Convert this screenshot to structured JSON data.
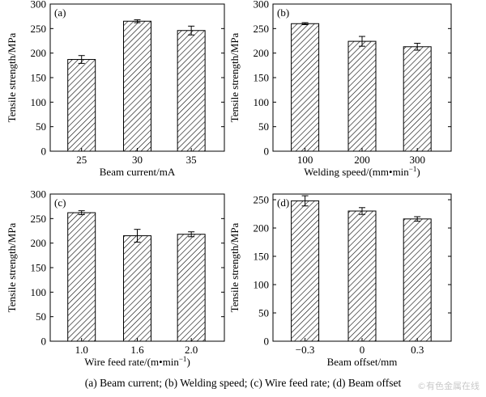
{
  "caption": "(a) Beam current; (b) Welding speed; (c) Wire feed rate; (d) Beam offset",
  "watermark": "©有色金属在线",
  "chart_data": [
    {
      "type": "bar",
      "panel_label": "(a)",
      "categories": [
        "25",
        "30",
        "35"
      ],
      "values": [
        187,
        265,
        246
      ],
      "errors": [
        8,
        3,
        9
      ],
      "xlabel": "Beam current/mA",
      "ylabel": "Tensile strength/MPa",
      "ylim": [
        0,
        300
      ],
      "yticks": [
        0,
        50,
        100,
        150,
        200,
        250,
        300
      ],
      "bar_fill": "diagonal hatch"
    },
    {
      "type": "bar",
      "panel_label": "(b)",
      "categories": [
        "100",
        "200",
        "300"
      ],
      "values": [
        260,
        224,
        213
      ],
      "errors": [
        2,
        10,
        7
      ],
      "xlabel": "Welding speed/(mm•min",
      "xlabel_sup": "−1",
      "xlabel_end": ")",
      "ylabel": "Tensile strength/MPa",
      "ylim": [
        0,
        300
      ],
      "yticks": [
        0,
        50,
        100,
        150,
        200,
        250,
        300
      ],
      "bar_fill": "diagonal hatch"
    },
    {
      "type": "bar",
      "panel_label": "(c)",
      "categories": [
        "1.0",
        "1.6",
        "2.0"
      ],
      "values": [
        262,
        215,
        218
      ],
      "errors": [
        4,
        13,
        5
      ],
      "xlabel": "Wire feed rate/(m•min",
      "xlabel_sup": "−1",
      "xlabel_end": ")",
      "ylabel": "Tensile strength/MPa",
      "ylim": [
        0,
        300
      ],
      "yticks": [
        0,
        50,
        100,
        150,
        200,
        250,
        300
      ],
      "bar_fill": "diagonal hatch"
    },
    {
      "type": "bar",
      "panel_label": "(d)",
      "categories": [
        "−0.3",
        "0",
        "0.3"
      ],
      "values": [
        248,
        230,
        216
      ],
      "errors": [
        9,
        6,
        4
      ],
      "xlabel": "Beam offset/mm",
      "ylabel": "Tensile strength/MPa",
      "ylim": [
        0,
        260
      ],
      "yticks": [
        0,
        50,
        100,
        150,
        200,
        250
      ],
      "bar_fill": "diagonal hatch"
    }
  ]
}
